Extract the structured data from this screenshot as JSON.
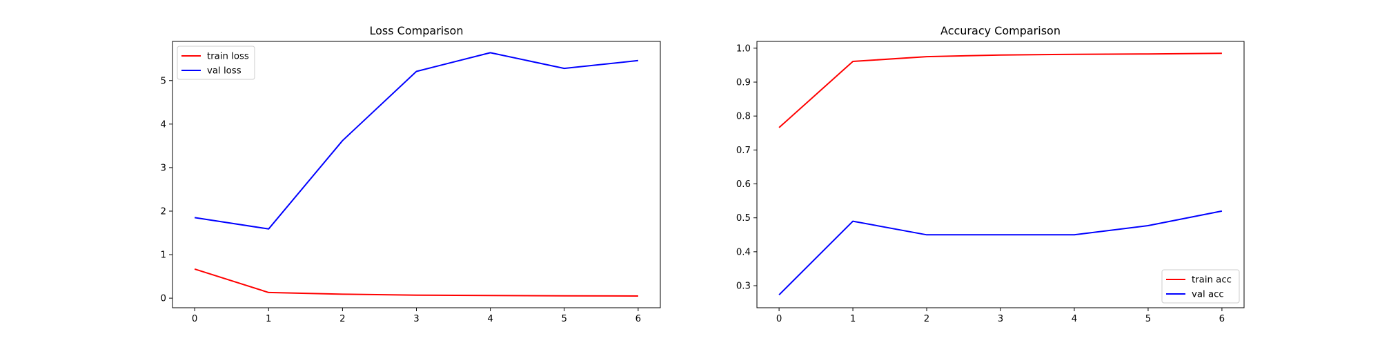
{
  "chart_data": [
    {
      "type": "line",
      "title": "Loss Comparison",
      "xlabel": "",
      "ylabel": "",
      "x": [
        0,
        1,
        2,
        3,
        4,
        5,
        6
      ],
      "xlim": [
        -0.3,
        6.3
      ],
      "ylim": [
        -0.22,
        5.9
      ],
      "xticks": [
        0,
        1,
        2,
        3,
        4,
        5,
        6
      ],
      "yticks": [
        0,
        1,
        2,
        3,
        4,
        5
      ],
      "grid": false,
      "legend_position": "upper-left",
      "series": [
        {
          "name": "train loss",
          "color": "#ff0000",
          "values": [
            0.67,
            0.13,
            0.09,
            0.07,
            0.06,
            0.055,
            0.05
          ]
        },
        {
          "name": "val loss",
          "color": "#0000ff",
          "values": [
            1.85,
            1.59,
            3.62,
            5.21,
            5.64,
            5.28,
            5.46
          ]
        }
      ]
    },
    {
      "type": "line",
      "title": "Accuracy Comparison",
      "xlabel": "",
      "ylabel": "",
      "x": [
        0,
        1,
        2,
        3,
        4,
        5,
        6
      ],
      "xlim": [
        -0.3,
        6.3
      ],
      "ylim": [
        0.235,
        1.02
      ],
      "xticks": [
        0,
        1,
        2,
        3,
        4,
        5,
        6
      ],
      "yticks": [
        0.3,
        0.4,
        0.5,
        0.6,
        0.7,
        0.8,
        0.9,
        1.0
      ],
      "grid": false,
      "legend_position": "lower-right",
      "series": [
        {
          "name": "train acc",
          "color": "#ff0000",
          "values": [
            0.766,
            0.961,
            0.975,
            0.98,
            0.982,
            0.983,
            0.985
          ]
        },
        {
          "name": "val acc",
          "color": "#0000ff",
          "values": [
            0.273,
            0.49,
            0.45,
            0.45,
            0.45,
            0.477,
            0.52
          ]
        }
      ]
    }
  ]
}
